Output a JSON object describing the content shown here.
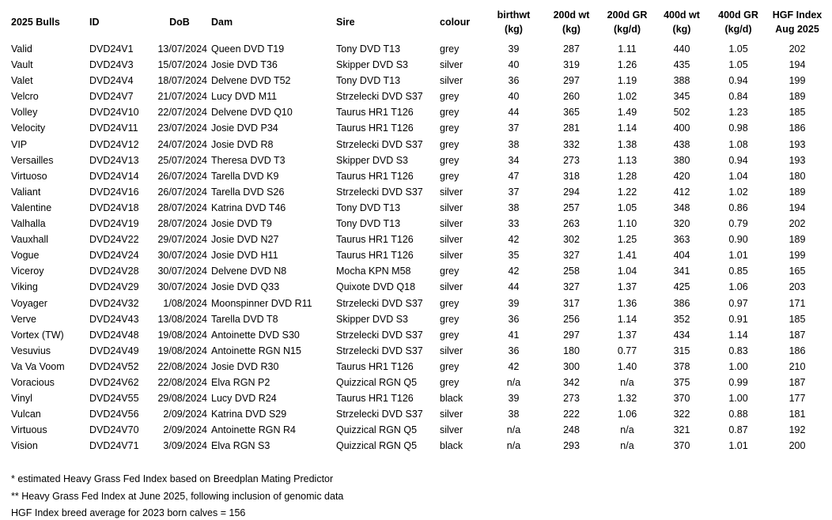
{
  "table": {
    "columns": [
      {
        "key": "name",
        "label": "2025 Bulls"
      },
      {
        "key": "id",
        "label": "ID"
      },
      {
        "key": "dob",
        "label": "DoB"
      },
      {
        "key": "dam",
        "label": "Dam"
      },
      {
        "key": "sire",
        "label": "Sire"
      },
      {
        "key": "colour",
        "label": "colour"
      },
      {
        "key": "birthwt",
        "label": "birthwt",
        "label2": "(kg)"
      },
      {
        "key": "wt200",
        "label": "200d wt",
        "label2": "(kg)"
      },
      {
        "key": "gr200",
        "label": "200d GR",
        "label2": "(kg/d)"
      },
      {
        "key": "wt400",
        "label": "400d wt",
        "label2": "(kg)"
      },
      {
        "key": "gr400",
        "label": "400d GR",
        "label2": "(kg/d)"
      },
      {
        "key": "hgf",
        "label": "HGF Index",
        "label2": "Aug 2025"
      }
    ],
    "rows": [
      {
        "name": "Valid",
        "id": "DVD24V1",
        "dob": "13/07/2024",
        "dam": "Queen DVD T19",
        "sire": "Tony DVD T13",
        "colour": "grey",
        "birthwt": "39",
        "wt200": "287",
        "gr200": "1.11",
        "wt400": "440",
        "gr400": "1.05",
        "hgf": "202"
      },
      {
        "name": "Vault",
        "id": "DVD24V3",
        "dob": "15/07/2024",
        "dam": "Josie DVD T36",
        "sire": "Skipper DVD S3",
        "colour": "silver",
        "birthwt": "40",
        "wt200": "319",
        "gr200": "1.26",
        "wt400": "435",
        "gr400": "1.05",
        "hgf": "194"
      },
      {
        "name": "Valet",
        "id": "DVD24V4",
        "dob": "18/07/2024",
        "dam": "Delvene DVD T52",
        "sire": "Tony DVD T13",
        "colour": "silver",
        "birthwt": "36",
        "wt200": "297",
        "gr200": "1.19",
        "wt400": "388",
        "gr400": "0.94",
        "hgf": "199"
      },
      {
        "name": "Velcro",
        "id": "DVD24V7",
        "dob": "21/07/2024",
        "dam": "Lucy DVD M11",
        "sire": "Strzelecki DVD S37",
        "colour": "grey",
        "birthwt": "40",
        "wt200": "260",
        "gr200": "1.02",
        "wt400": "345",
        "gr400": "0.84",
        "hgf": "189"
      },
      {
        "name": "Volley",
        "id": "DVD24V10",
        "dob": "22/07/2024",
        "dam": "Delvene DVD Q10",
        "sire": "Taurus HR1 T126",
        "colour": "grey",
        "birthwt": "44",
        "wt200": "365",
        "gr200": "1.49",
        "wt400": "502",
        "gr400": "1.23",
        "hgf": "185"
      },
      {
        "name": "Velocity",
        "id": "DVD24V11",
        "dob": "23/07/2024",
        "dam": "Josie DVD P34",
        "sire": "Taurus HR1 T126",
        "colour": "grey",
        "birthwt": "37",
        "wt200": "281",
        "gr200": "1.14",
        "wt400": "400",
        "gr400": "0.98",
        "hgf": "186"
      },
      {
        "name": "VIP",
        "id": "DVD24V12",
        "dob": "24/07/2024",
        "dam": "Josie DVD R8",
        "sire": "Strzelecki DVD S37",
        "colour": "grey",
        "birthwt": "38",
        "wt200": "332",
        "gr200": "1.38",
        "wt400": "438",
        "gr400": "1.08",
        "hgf": "193"
      },
      {
        "name": "Versailles",
        "id": "DVD24V13",
        "dob": "25/07/2024",
        "dam": "Theresa DVD T3",
        "sire": "Skipper DVD S3",
        "colour": "grey",
        "birthwt": "34",
        "wt200": "273",
        "gr200": "1.13",
        "wt400": "380",
        "gr400": "0.94",
        "hgf": "193"
      },
      {
        "name": "Virtuoso",
        "id": "DVD24V14",
        "dob": "26/07/2024",
        "dam": "Tarella DVD K9",
        "sire": "Taurus HR1 T126",
        "colour": "grey",
        "birthwt": "47",
        "wt200": "318",
        "gr200": "1.28",
        "wt400": "420",
        "gr400": "1.04",
        "hgf": "180"
      },
      {
        "name": "Valiant",
        "id": "DVD24V16",
        "dob": "26/07/2024",
        "dam": "Tarella DVD S26",
        "sire": "Strzelecki DVD S37",
        "colour": "silver",
        "birthwt": "37",
        "wt200": "294",
        "gr200": "1.22",
        "wt400": "412",
        "gr400": "1.02",
        "hgf": "189"
      },
      {
        "name": "Valentine",
        "id": "DVD24V18",
        "dob": "28/07/2024",
        "dam": "Katrina DVD T46",
        "sire": "Tony DVD T13",
        "colour": "silver",
        "birthwt": "38",
        "wt200": "257",
        "gr200": "1.05",
        "wt400": "348",
        "gr400": "0.86",
        "hgf": "194"
      },
      {
        "name": "Valhalla",
        "id": "DVD24V19",
        "dob": "28/07/2024",
        "dam": "Josie DVD T9",
        "sire": "Tony DVD T13",
        "colour": "silver",
        "birthwt": "33",
        "wt200": "263",
        "gr200": "1.10",
        "wt400": "320",
        "gr400": "0.79",
        "hgf": "202"
      },
      {
        "name": "Vauxhall",
        "id": "DVD24V22",
        "dob": "29/07/2024",
        "dam": "Josie DVD N27",
        "sire": "Taurus HR1 T126",
        "colour": "silver",
        "birthwt": "42",
        "wt200": "302",
        "gr200": "1.25",
        "wt400": "363",
        "gr400": "0.90",
        "hgf": "189"
      },
      {
        "name": "Vogue",
        "id": "DVD24V24",
        "dob": "30/07/2024",
        "dam": "Josie DVD H11",
        "sire": "Taurus HR1 T126",
        "colour": "silver",
        "birthwt": "35",
        "wt200": "327",
        "gr200": "1.41",
        "wt400": "404",
        "gr400": "1.01",
        "hgf": "199"
      },
      {
        "name": "Viceroy",
        "id": "DVD24V28",
        "dob": "30/07/2024",
        "dam": "Delvene DVD N8",
        "sire": "Mocha KPN M58",
        "colour": "grey",
        "birthwt": "42",
        "wt200": "258",
        "gr200": "1.04",
        "wt400": "341",
        "gr400": "0.85",
        "hgf": "165"
      },
      {
        "name": "Viking",
        "id": "DVD24V29",
        "dob": "30/07/2024",
        "dam": "Josie DVD Q33",
        "sire": "Quixote DVD Q18",
        "colour": "silver",
        "birthwt": "44",
        "wt200": "327",
        "gr200": "1.37",
        "wt400": "425",
        "gr400": "1.06",
        "hgf": "203"
      },
      {
        "name": "Voyager",
        "id": "DVD24V32",
        "dob": "1/08/2024",
        "dam": "Moonspinner DVD R11",
        "sire": "Strzelecki DVD S37",
        "colour": "grey",
        "birthwt": "39",
        "wt200": "317",
        "gr200": "1.36",
        "wt400": "386",
        "gr400": "0.97",
        "hgf": "171"
      },
      {
        "name": "Verve",
        "id": "DVD24V43",
        "dob": "13/08/2024",
        "dam": "Tarella DVD T8",
        "sire": "Skipper DVD S3",
        "colour": "grey",
        "birthwt": "36",
        "wt200": "256",
        "gr200": "1.14",
        "wt400": "352",
        "gr400": "0.91",
        "hgf": "185"
      },
      {
        "name": "Vortex (TW)",
        "id": "DVD24V48",
        "dob": "19/08/2024",
        "dam": "Antoinette DVD S30",
        "sire": "Strzelecki DVD S37",
        "colour": "grey",
        "birthwt": "41",
        "wt200": "297",
        "gr200": "1.37",
        "wt400": "434",
        "gr400": "1.14",
        "hgf": "187"
      },
      {
        "name": "Vesuvius",
        "id": "DVD24V49",
        "dob": "19/08/2024",
        "dam": "Antoinette RGN N15",
        "sire": "Strzelecki DVD S37",
        "colour": "silver",
        "birthwt": "36",
        "wt200": "180",
        "gr200": "0.77",
        "wt400": "315",
        "gr400": "0.83",
        "hgf": "186"
      },
      {
        "name": "Va Va Voom",
        "id": "DVD24V52",
        "dob": "22/08/2024",
        "dam": "Josie DVD R30",
        "sire": "Taurus HR1 T126",
        "colour": "grey",
        "birthwt": "42",
        "wt200": "300",
        "gr200": "1.40",
        "wt400": "378",
        "gr400": "1.00",
        "hgf": "210"
      },
      {
        "name": "Voracious",
        "id": "DVD24V62",
        "dob": "22/08/2024",
        "dam": "Elva RGN P2",
        "sire": "Quizzical RGN Q5",
        "colour": "grey",
        "birthwt": "n/a",
        "wt200": "342",
        "gr200": "n/a",
        "wt400": "375",
        "gr400": "0.99",
        "hgf": "187"
      },
      {
        "name": "Vinyl",
        "id": "DVD24V55",
        "dob": "29/08/2024",
        "dam": "Lucy DVD R24",
        "sire": "Taurus HR1 T126",
        "colour": "black",
        "birthwt": "39",
        "wt200": "273",
        "gr200": "1.32",
        "wt400": "370",
        "gr400": "1.00",
        "hgf": "177"
      },
      {
        "name": "Vulcan",
        "id": "DVD24V56",
        "dob": "2/09/2024",
        "dam": "Katrina DVD S29",
        "sire": "Strzelecki DVD S37",
        "colour": "silver",
        "birthwt": "38",
        "wt200": "222",
        "gr200": "1.06",
        "wt400": "322",
        "gr400": "0.88",
        "hgf": "181"
      },
      {
        "name": "Virtuous",
        "id": "DVD24V70",
        "dob": "2/09/2024",
        "dam": "Antoinette RGN R4",
        "sire": "Quizzical RGN Q5",
        "colour": "silver",
        "birthwt": "n/a",
        "wt200": "248",
        "gr200": "n/a",
        "wt400": "321",
        "gr400": "0.87",
        "hgf": "192"
      },
      {
        "name": "Vision",
        "id": "DVD24V71",
        "dob": "3/09/2024",
        "dam": "Elva RGN S3",
        "sire": "Quizzical RGN Q5",
        "colour": "black",
        "birthwt": "n/a",
        "wt200": "293",
        "gr200": "n/a",
        "wt400": "370",
        "gr400": "1.01",
        "hgf": "200"
      }
    ]
  },
  "footnotes": [
    "* estimated Heavy Grass Fed Index based on Breedplan Mating Predictor",
    "** Heavy Grass Fed Index at June 2025, following inclusion of genomic data",
    "HGF Index breed average for 2023 born calves = 156"
  ]
}
